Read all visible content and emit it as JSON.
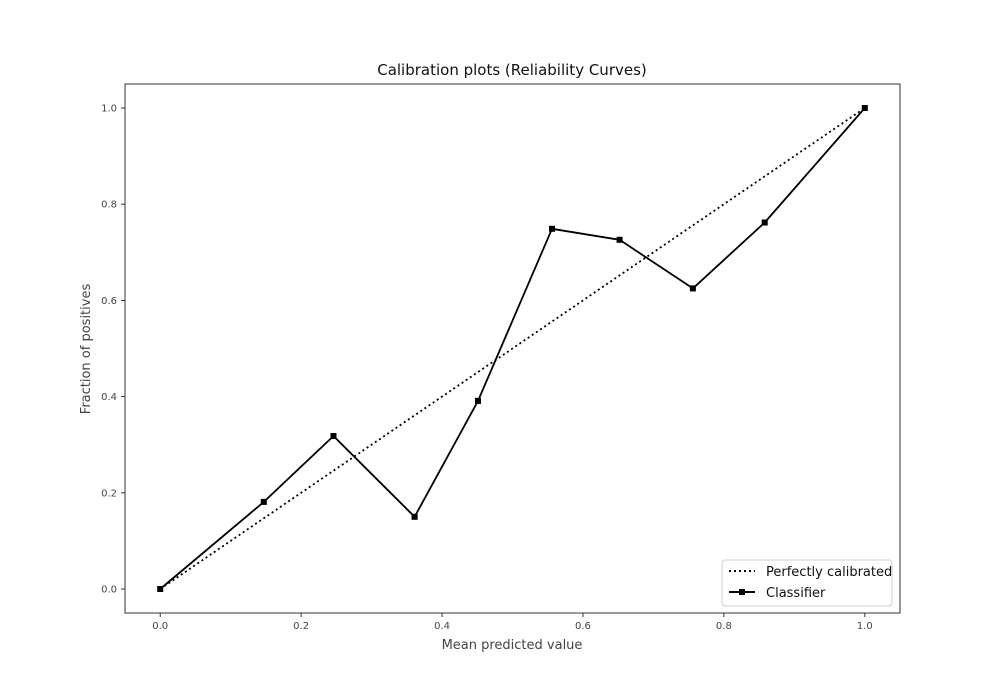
{
  "chart_data": {
    "type": "line",
    "title": "Calibration plots (Reliability Curves)",
    "xlabel": "Mean predicted value",
    "ylabel": "Fraction of positives",
    "xlim": [
      -0.05,
      1.05
    ],
    "ylim": [
      -0.05,
      1.05
    ],
    "xticks": [
      0.0,
      0.2,
      0.4,
      0.6,
      0.8,
      1.0
    ],
    "yticks": [
      0.0,
      0.2,
      0.4,
      0.6,
      0.8,
      1.0
    ],
    "xtick_labels": [
      "0.0",
      "0.2",
      "0.4",
      "0.6",
      "0.8",
      "1.0"
    ],
    "ytick_labels": [
      "0.0",
      "0.2",
      "0.4",
      "0.6",
      "0.8",
      "1.0"
    ],
    "grid": false,
    "legend_placement": "lower-right",
    "series": [
      {
        "name": "Perfectly calibrated",
        "style": "dotted",
        "color": "#000000",
        "marker": "none",
        "x": [
          0.0,
          1.0
        ],
        "y": [
          0.0,
          1.0
        ]
      },
      {
        "name": "Classifier",
        "style": "solid",
        "color": "#000000",
        "marker": "square",
        "x": [
          0.0,
          0.147,
          0.246,
          0.361,
          0.451,
          0.556,
          0.652,
          0.756,
          0.858,
          1.0
        ],
        "y": [
          0.0,
          0.181,
          0.318,
          0.15,
          0.391,
          0.749,
          0.726,
          0.625,
          0.762,
          1.0
        ]
      }
    ]
  }
}
